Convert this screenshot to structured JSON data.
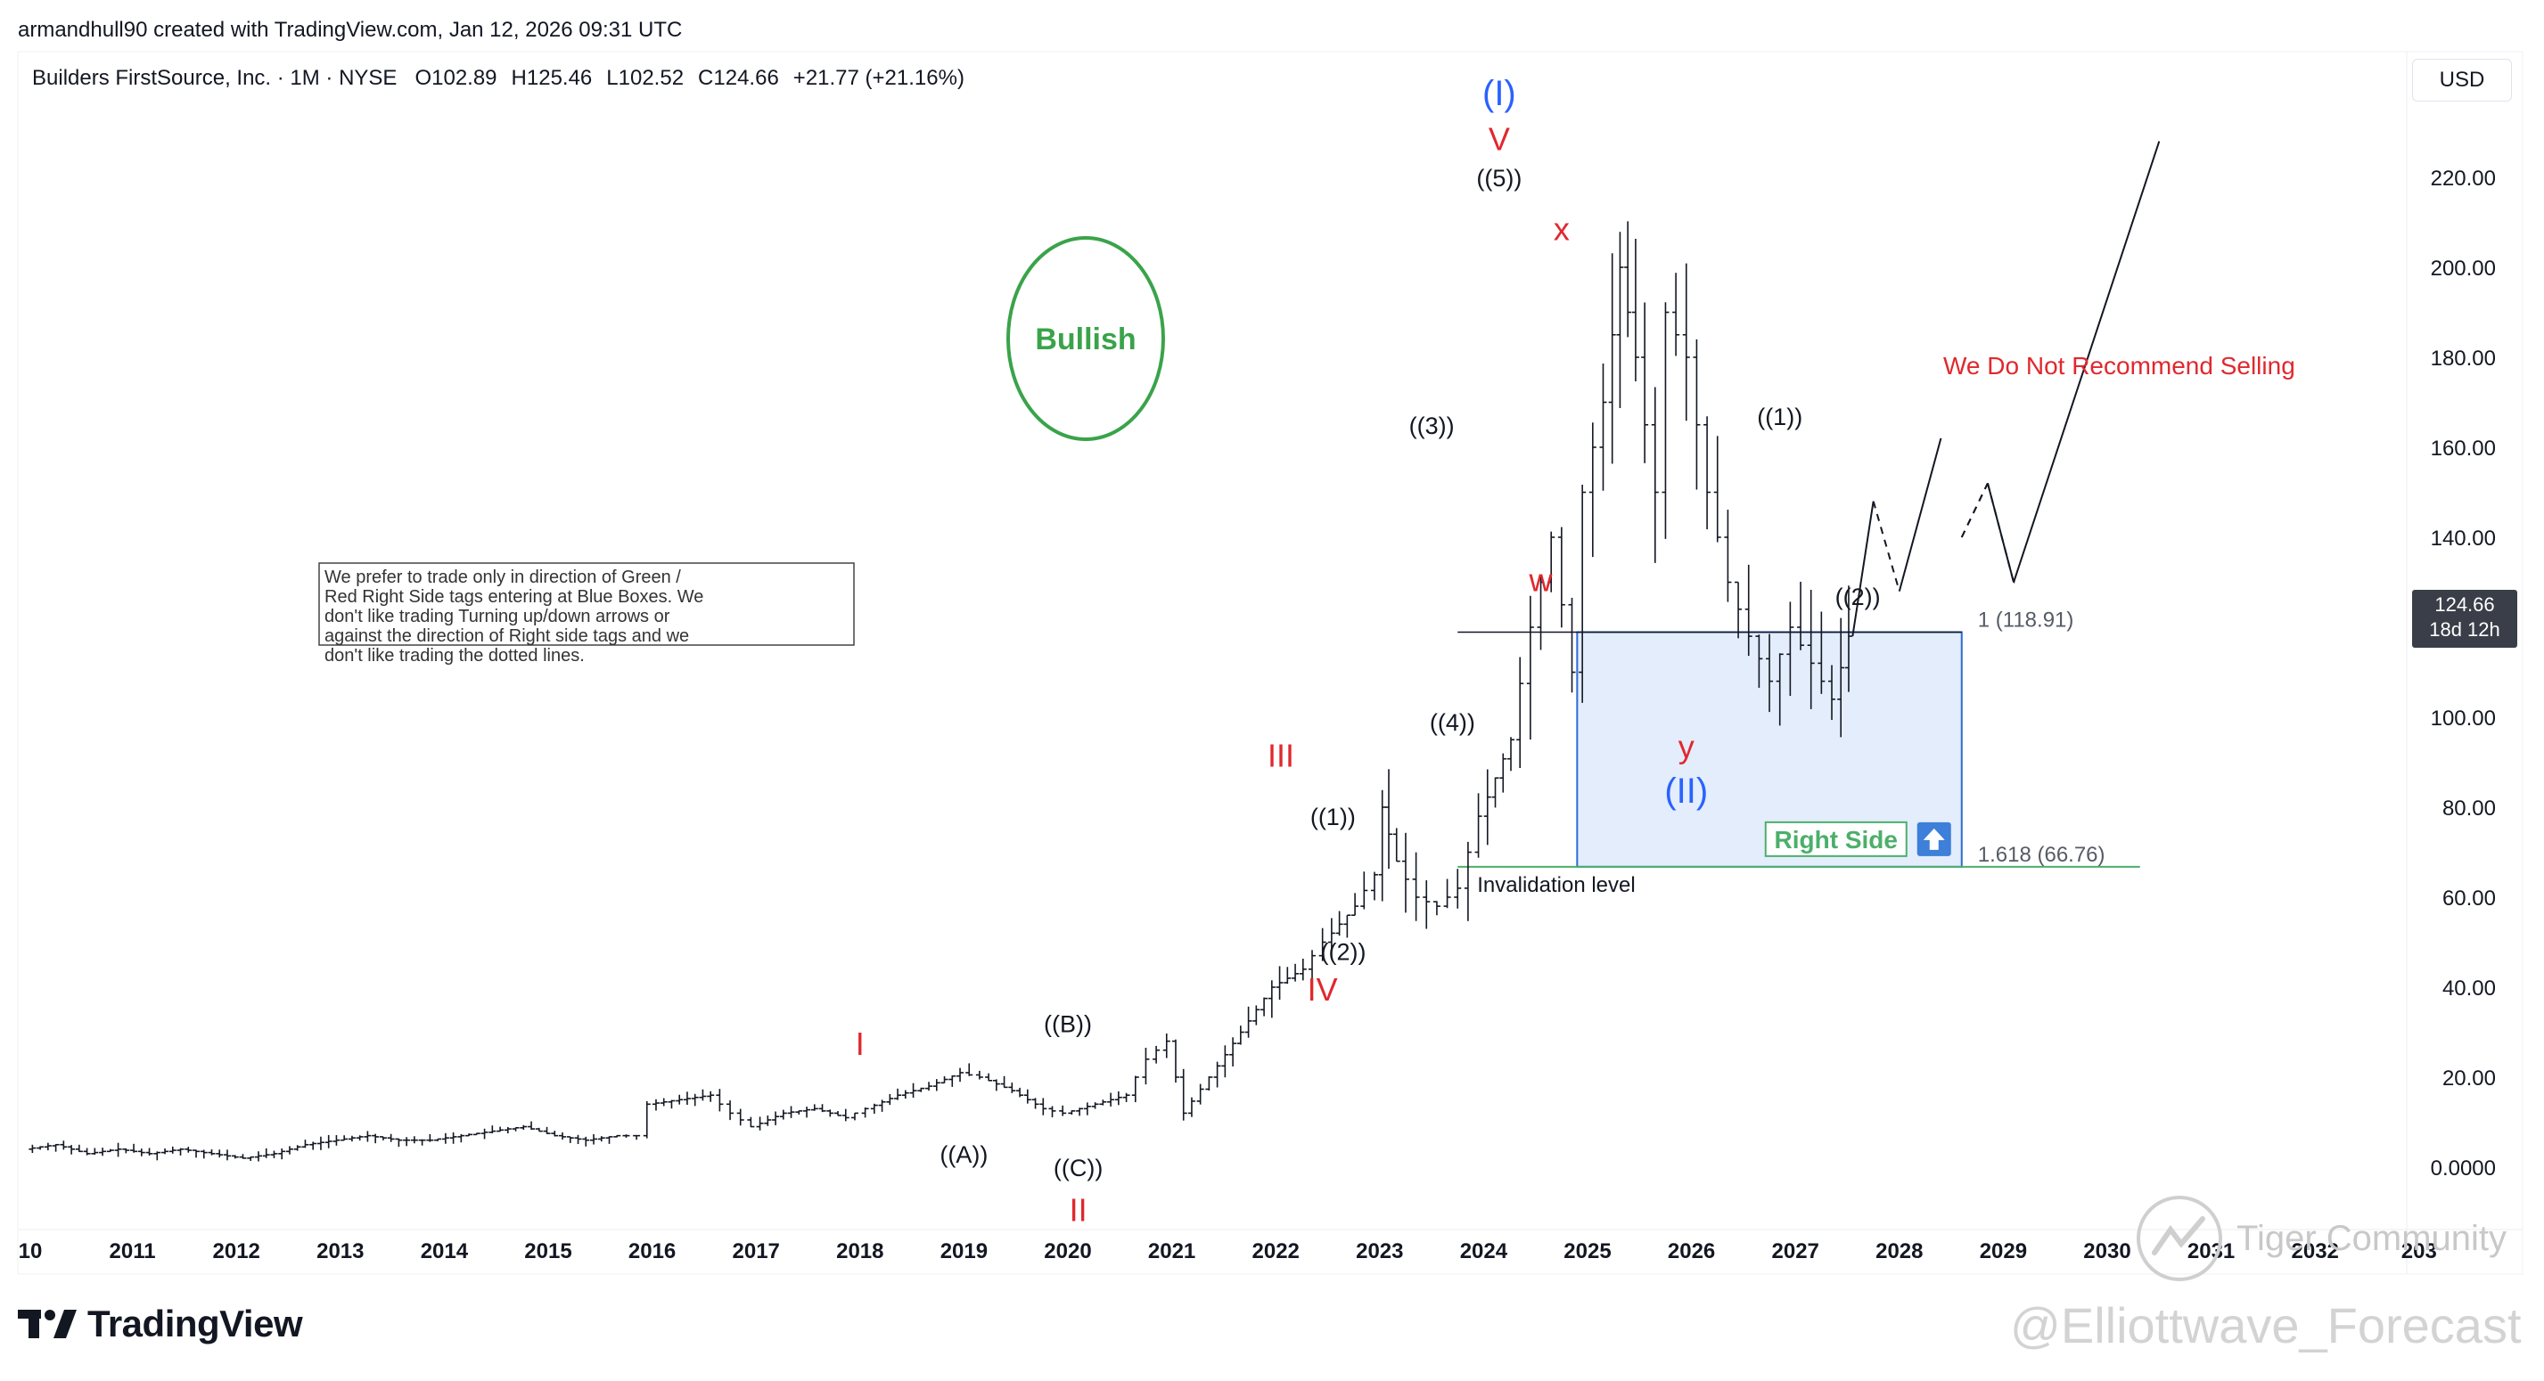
{
  "header": {
    "credit": "armandhull90 created with TradingView.com, Jan 12, 2026 09:31 UTC"
  },
  "legend": {
    "symbol": "Builders FirstSource, Inc. · 1M · NYSE",
    "open_label": "O",
    "open": "102.89",
    "high_label": "H",
    "high": "125.46",
    "low_label": "L",
    "low": "102.52",
    "close_label": "C",
    "close": "124.66",
    "change": "+21.77 (+21.16%)"
  },
  "currency_button": "USD",
  "price_tag": {
    "price": "124.66",
    "countdown": "18d 12h"
  },
  "colors": {
    "wave_red": "#e0282e",
    "wave_blue": "#2962ff",
    "bullish_green": "#3aa34a",
    "box_fill": "#e3edfb",
    "box_border": "#2a6bd6",
    "right_side_green": "#4caf6a",
    "axis_text": "#131722"
  },
  "chart_data": {
    "type": "ohlc",
    "timeframe": "1M",
    "ylim": [
      -20,
      240
    ],
    "y_ticks": [
      "220.00",
      "200.00",
      "180.00",
      "160.00",
      "140.00",
      "120.00",
      "100.00",
      "80.00",
      "60.00",
      "40.00",
      "20.00",
      "0.0000"
    ],
    "y_tick_values": [
      220,
      200,
      180,
      160,
      140,
      120,
      100,
      80,
      60,
      40,
      20,
      0
    ],
    "x_ticks": [
      "10",
      "2011",
      "2012",
      "2013",
      "2014",
      "2015",
      "2016",
      "2017",
      "2018",
      "2019",
      "2020",
      "2021",
      "2022",
      "2023",
      "2024",
      "2025",
      "2026",
      "2027",
      "2028",
      "2029",
      "2030",
      "2031",
      "2032",
      "203"
    ],
    "x_tick_values": [
      2010.0,
      2011.0,
      2012.0,
      2013.0,
      2014.0,
      2015.0,
      2016.0,
      2017.0,
      2018.0,
      2019.0,
      2020.0,
      2021.0,
      2022.0,
      2023.0,
      2024.0,
      2025.0,
      2026.0,
      2027.0,
      2028.0,
      2029.0,
      2030.0,
      2031.0,
      2032.0,
      2033.0
    ],
    "price_path": [
      [
        2010.0,
        4
      ],
      [
        2010.3,
        5
      ],
      [
        2010.6,
        3
      ],
      [
        2010.9,
        4
      ],
      [
        2011.2,
        3
      ],
      [
        2011.5,
        4
      ],
      [
        2011.8,
        3
      ],
      [
        2012.1,
        2
      ],
      [
        2012.4,
        3
      ],
      [
        2012.7,
        5
      ],
      [
        2013.0,
        6
      ],
      [
        2013.3,
        7
      ],
      [
        2013.6,
        6
      ],
      [
        2013.9,
        6
      ],
      [
        2014.2,
        7
      ],
      [
        2014.5,
        8
      ],
      [
        2014.8,
        9
      ],
      [
        2015.1,
        7
      ],
      [
        2015.4,
        6
      ],
      [
        2015.7,
        7
      ],
      [
        2015.9,
        7
      ],
      [
        2016.0,
        14
      ],
      [
        2016.3,
        15
      ],
      [
        2016.6,
        16
      ],
      [
        2016.8,
        12
      ],
      [
        2017.0,
        9
      ],
      [
        2017.3,
        12
      ],
      [
        2017.6,
        13
      ],
      [
        2017.9,
        11
      ],
      [
        2018.1,
        13
      ],
      [
        2018.4,
        16
      ],
      [
        2018.7,
        18
      ],
      [
        2019.0,
        21
      ],
      [
        2019.2,
        20
      ],
      [
        2019.5,
        17
      ],
      [
        2019.8,
        13
      ],
      [
        2020.0,
        12
      ],
      [
        2020.3,
        14
      ],
      [
        2020.6,
        16
      ],
      [
        2020.8,
        24
      ],
      [
        2021.0,
        28
      ],
      [
        2021.15,
        12
      ],
      [
        2021.4,
        20
      ],
      [
        2021.7,
        30
      ],
      [
        2022.0,
        40
      ],
      [
        2022.3,
        44
      ],
      [
        2022.5,
        50
      ],
      [
        2022.8,
        58
      ],
      [
        2023.0,
        65
      ],
      [
        2023.05,
        80
      ],
      [
        2023.2,
        68
      ],
      [
        2023.4,
        60
      ],
      [
        2023.6,
        58
      ],
      [
        2023.8,
        62
      ],
      [
        2024.0,
        78
      ],
      [
        2024.3,
        95
      ],
      [
        2024.5,
        120
      ],
      [
        2024.7,
        140
      ],
      [
        2024.9,
        110
      ],
      [
        2025.0,
        150
      ],
      [
        2025.2,
        170
      ],
      [
        2025.35,
        200
      ],
      [
        2025.5,
        180
      ],
      [
        2025.7,
        150
      ],
      [
        2025.8,
        190
      ],
      [
        2026.0,
        180
      ],
      [
        2026.2,
        150
      ],
      [
        2026.4,
        130
      ],
      [
        2026.6,
        118
      ],
      [
        2026.8,
        108
      ],
      [
        2027.0,
        120
      ],
      [
        2027.2,
        112
      ],
      [
        2027.4,
        104
      ],
      [
        2027.55,
        118
      ]
    ],
    "projection_solid": [
      [
        2027.55,
        118
      ],
      [
        2027.75,
        148
      ],
      [
        2028.0,
        128
      ],
      [
        2028.4,
        162
      ],
      [
        2030.5,
        228
      ]
    ],
    "projection_dashed": [
      [
        2027.75,
        148
      ],
      [
        2028.0,
        128
      ],
      [
        2028.4,
        162
      ],
      [
        2028.6,
        140
      ],
      [
        2028.85,
        152
      ],
      [
        2029.1,
        130
      ]
    ],
    "wave_labels": [
      {
        "text": "I",
        "x": 2018.0,
        "y": 25,
        "color": "red"
      },
      {
        "text": "II",
        "x": 2020.1,
        "y": -12,
        "color": "red"
      },
      {
        "text": "III",
        "x": 2022.05,
        "y": 89,
        "color": "red"
      },
      {
        "text": "IV",
        "x": 2022.45,
        "y": 37,
        "color": "red"
      },
      {
        "text": "V",
        "x": 2024.15,
        "y": 226,
        "color": "red"
      },
      {
        "text": "(I)",
        "x": 2024.15,
        "y": 236,
        "color": "blue"
      },
      {
        "text": "((5))",
        "x": 2024.15,
        "y": 218,
        "color": "black"
      },
      {
        "text": "((1))",
        "x": 2022.55,
        "y": 76,
        "color": "black"
      },
      {
        "text": "((2))",
        "x": 2022.65,
        "y": 46,
        "color": "black"
      },
      {
        "text": "((3))",
        "x": 2023.5,
        "y": 163,
        "color": "black"
      },
      {
        "text": "((4))",
        "x": 2023.7,
        "y": 97,
        "color": "black"
      },
      {
        "text": "((A))",
        "x": 2019.0,
        "y": 1,
        "color": "black"
      },
      {
        "text": "((B))",
        "x": 2020.0,
        "y": 30,
        "color": "black"
      },
      {
        "text": "((C))",
        "x": 2020.1,
        "y": -2,
        "color": "black"
      },
      {
        "text": "w",
        "x": 2024.55,
        "y": 128,
        "color": "red"
      },
      {
        "text": "x",
        "x": 2024.75,
        "y": 206,
        "color": "red"
      },
      {
        "text": "y",
        "x": 2025.95,
        "y": 91,
        "color": "red"
      },
      {
        "text": "(II)",
        "x": 2025.95,
        "y": 81,
        "color": "blue"
      },
      {
        "text": "((1))",
        "x": 2026.85,
        "y": 165,
        "color": "black"
      },
      {
        "text": "((2))",
        "x": 2027.6,
        "y": 125,
        "color": "black"
      }
    ],
    "blue_box": {
      "x_start": 2024.9,
      "x_end": 2028.6,
      "y_top": 118.91,
      "y_bottom": 66.76
    },
    "fib_levels": [
      {
        "label": "1 (118.91)",
        "value": 118.91
      },
      {
        "label": "1.618 (66.76)",
        "value": 66.76
      }
    ],
    "invalidation_label": "Invalidation level",
    "right_side_label": "Right Side",
    "bullish_label": "Bullish",
    "note": "We prefer to trade only in direction of Green / Red Right Side tags entering at Blue Boxes. We don't like trading Turning up/down arrows or against the direction of Right side tags and we don't like trading the dotted lines.",
    "warning": "We Do Not Recommend Selling"
  },
  "brand": {
    "tradingview": "TradingView",
    "tiger": "Tiger Community",
    "ewf": "@Elliottwave_Forecast"
  }
}
